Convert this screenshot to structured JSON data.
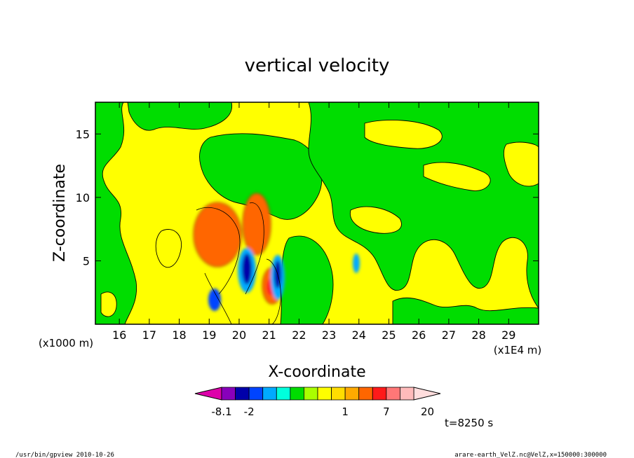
{
  "chart_data": {
    "type": "heatmap",
    "title": "vertical velocity",
    "xlabel": "X-coordinate",
    "ylabel": "Z-coordinate",
    "x_range": [
      15.2,
      30.0
    ],
    "y_range": [
      0.0,
      17.5
    ],
    "x_ticks": [
      16,
      17,
      18,
      19,
      20,
      21,
      22,
      23,
      24,
      25,
      26,
      27,
      28,
      29
    ],
    "y_ticks": [
      5,
      10,
      15
    ],
    "x_unit": "(x1E4 m)",
    "y_unit": "(x1000 m)",
    "colorbar": {
      "levels": [
        -20,
        -8.1,
        -5,
        -2,
        -1,
        -0.5,
        -0.25,
        0,
        0.25,
        0.5,
        1,
        2,
        5,
        7,
        10,
        15,
        20
      ],
      "labels": [
        "-8.1",
        "-2",
        "1",
        "7",
        "20"
      ],
      "colors": [
        "#dd00aa",
        "#8800bb",
        "#0000aa",
        "#0044ff",
        "#00aaff",
        "#00ffdd",
        "#00dd00",
        "#aaff00",
        "#ffff00",
        "#ffdd00",
        "#ffaa00",
        "#ff6600",
        "#ff1a1a",
        "#ff7777",
        "#ffbbbb",
        "#ffdddd"
      ]
    },
    "features": [
      {
        "x": 19.6,
        "z": 6.5,
        "sign": "positive",
        "peak": 7
      },
      {
        "x": 20.5,
        "z": 7.2,
        "sign": "positive",
        "peak": 7
      },
      {
        "x": 21.0,
        "z": 3.0,
        "sign": "positive",
        "peak": 10
      },
      {
        "x": 20.15,
        "z": 4.5,
        "sign": "negative",
        "peak": -8.1
      },
      {
        "x": 21.2,
        "z": 4.2,
        "sign": "negative",
        "peak": -8.1
      },
      {
        "x": 19.05,
        "z": 2.0,
        "sign": "negative",
        "peak": -3
      }
    ],
    "time_label": "t=8250 s"
  },
  "footer": {
    "left": "/usr/bin/gpview  2010-10-26",
    "right": "arare-earth_VelZ.nc@VelZ,x=150000:300000"
  }
}
